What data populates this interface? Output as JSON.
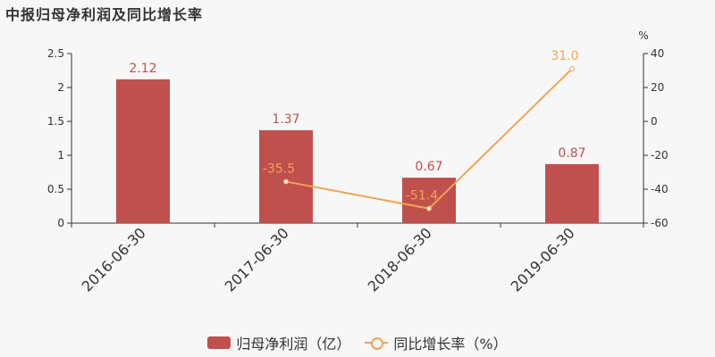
{
  "title": "中报归母净利润及同比增长率",
  "chart_data": {
    "type": "bar+line",
    "categories": [
      "2016-06-30",
      "2017-06-30",
      "2018-06-30",
      "2019-06-30"
    ],
    "y_left": {
      "min": 0,
      "max": 2.5,
      "ticks": [
        "0",
        "0.5",
        "1",
        "1.5",
        "2",
        "2.5"
      ]
    },
    "y_right": {
      "min": -60,
      "max": 40,
      "unit": "%",
      "ticks": [
        "-60",
        "-40",
        "-20",
        "0",
        "20",
        "40"
      ]
    },
    "series": [
      {
        "name": "归母净利润（亿）",
        "type": "bar",
        "axis": "left",
        "values": [
          2.12,
          1.37,
          0.67,
          0.87
        ],
        "labels": [
          "2.12",
          "1.37",
          "0.67",
          "0.87"
        ],
        "color": "#c0504d"
      },
      {
        "name": "同比增长率（%）",
        "type": "line",
        "axis": "right",
        "values": [
          null,
          -35.5,
          -51.4,
          31.0
        ],
        "labels": [
          "",
          "-35.5",
          "-51.4",
          "31.0"
        ],
        "color": "#f4a352"
      }
    ],
    "grid": false,
    "legend_position": "bottom"
  }
}
